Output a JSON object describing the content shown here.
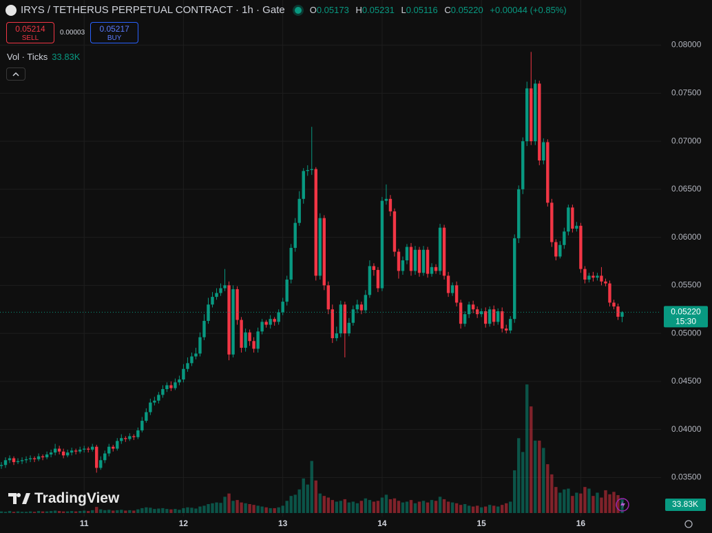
{
  "chart_data": {
    "type": "candlestick",
    "title": "IRYS / TETHERUS PERPETUAL CONTRACT · 1h · Gate",
    "ohlc_prefixes": [
      "O",
      "H",
      "L",
      "C"
    ],
    "last_price_label": "0.05220",
    "change": "+0.00044 (+0.85%)",
    "countdown": "15:30",
    "trade": {
      "sell_price": "0.05214",
      "sell_label": "SELL",
      "spread": "0.00003",
      "buy_price": "0.05217",
      "buy_label": "BUY"
    },
    "volume_indicator": "Vol · Ticks",
    "volume_last_label": "33.83K",
    "brand": "TradingView",
    "up_color": "#089981",
    "down_color": "#f23645",
    "ylim": [
      0.0313,
      0.0847
    ],
    "yticks": [
      {
        "value": 0.035,
        "label": "0.03500"
      },
      {
        "value": 0.04,
        "label": "0.04000"
      },
      {
        "value": 0.045,
        "label": "0.04500"
      },
      {
        "value": 0.05,
        "label": "0.05000"
      },
      {
        "value": 0.055,
        "label": "0.05500"
      },
      {
        "value": 0.06,
        "label": "0.06000"
      },
      {
        "value": 0.065,
        "label": "0.06500"
      },
      {
        "value": 0.07,
        "label": "0.07000"
      },
      {
        "value": 0.075,
        "label": "0.07500"
      },
      {
        "value": 0.08,
        "label": "0.08000"
      }
    ],
    "volume_lim": [
      0,
      330000
    ],
    "grid": true,
    "categories": [
      null,
      null,
      null,
      null,
      null,
      null,
      null,
      null,
      null,
      null,
      null,
      null,
      null,
      null,
      null,
      null,
      null,
      null,
      null,
      null,
      "11",
      null,
      null,
      null,
      null,
      null,
      null,
      null,
      null,
      null,
      null,
      null,
      null,
      null,
      null,
      null,
      null,
      null,
      null,
      null,
      null,
      null,
      null,
      null,
      "12",
      null,
      null,
      null,
      null,
      null,
      null,
      null,
      null,
      null,
      null,
      null,
      null,
      null,
      null,
      null,
      null,
      null,
      null,
      null,
      null,
      null,
      null,
      null,
      "13",
      null,
      null,
      null,
      null,
      null,
      null,
      null,
      null,
      null,
      null,
      null,
      null,
      null,
      null,
      null,
      null,
      null,
      null,
      null,
      null,
      null,
      null,
      null,
      "14",
      null,
      null,
      null,
      null,
      null,
      null,
      null,
      null,
      null,
      null,
      null,
      null,
      null,
      null,
      null,
      null,
      null,
      null,
      null,
      null,
      null,
      null,
      null,
      "15",
      null,
      null,
      null,
      null,
      null,
      null,
      null,
      null,
      null,
      null,
      null,
      null,
      null,
      null,
      null,
      null,
      null,
      null,
      null,
      null,
      null,
      null,
      null,
      "16",
      null,
      null,
      null,
      null,
      null,
      null,
      null,
      null,
      null,
      null
    ],
    "open": [
      0.0362,
      0.0363,
      0.0368,
      0.037,
      0.0366,
      0.0367,
      0.0368,
      0.0369,
      0.037,
      0.0369,
      0.0372,
      0.0371,
      0.0374,
      0.0376,
      0.038,
      0.0377,
      0.0373,
      0.0376,
      0.0378,
      0.0377,
      0.0379,
      0.038,
      0.0379,
      0.0382,
      0.036,
      0.0368,
      0.0375,
      0.0382,
      0.038,
      0.0388,
      0.0391,
      0.039,
      0.0393,
      0.0392,
      0.0399,
      0.0409,
      0.0418,
      0.0428,
      0.043,
      0.0436,
      0.0442,
      0.0446,
      0.0443,
      0.0449,
      0.0452,
      0.0463,
      0.0469,
      0.0476,
      0.0479,
      0.0496,
      0.0513,
      0.053,
      0.0538,
      0.0542,
      0.0547,
      0.055,
      0.0478,
      0.0546,
      0.0514,
      0.0485,
      0.0501,
      0.0492,
      0.0484,
      0.0502,
      0.0512,
      0.0509,
      0.0515,
      0.0512,
      0.0522,
      0.0533,
      0.0556,
      0.0589,
      0.0615,
      0.064,
      0.0669,
      0.067,
      0.0671,
      0.056,
      0.062,
      0.055,
      0.0525,
      0.0495,
      0.05,
      0.053,
      0.05,
      0.0511,
      0.0525,
      0.053,
      0.0524,
      0.054,
      0.057,
      0.0566,
      0.0547,
      0.0638,
      0.064,
      0.0627,
      0.0585,
      0.0565,
      0.0576,
      0.059,
      0.0565,
      0.0587,
      0.0563,
      0.0587,
      0.0562,
      0.0569,
      0.0565,
      0.061,
      0.056,
      0.0542,
      0.055,
      0.0532,
      0.051,
      0.052,
      0.053,
      0.0525,
      0.052,
      0.0523,
      0.051,
      0.0525,
      0.0512,
      0.0523,
      0.0505,
      0.0503,
      0.0515,
      0.0599,
      0.065,
      0.07,
      0.0755,
      0.07,
      0.076,
      0.068,
      0.0699,
      0.0636,
      0.0595,
      0.058,
      0.0592,
      0.0606,
      0.0631,
      0.0609,
      0.0612,
      0.0567,
      0.0556,
      0.056,
      0.0558,
      0.056,
      0.0554,
      0.0552,
      0.0532,
      0.0528,
      0.05173
    ],
    "high": [
      0.0366,
      0.0371,
      0.0373,
      0.0372,
      0.037,
      0.0371,
      0.0372,
      0.0373,
      0.0372,
      0.0375,
      0.0374,
      0.0377,
      0.0379,
      0.0385,
      0.0383,
      0.038,
      0.0379,
      0.0381,
      0.038,
      0.0382,
      0.0383,
      0.0382,
      0.0385,
      0.0384,
      0.0372,
      0.0378,
      0.0385,
      0.0384,
      0.0391,
      0.0395,
      0.0393,
      0.0396,
      0.0395,
      0.0402,
      0.0413,
      0.0422,
      0.0432,
      0.0434,
      0.0439,
      0.0446,
      0.0449,
      0.045,
      0.0453,
      0.0456,
      0.0468,
      0.0475,
      0.048,
      0.0485,
      0.0501,
      0.052,
      0.0537,
      0.0543,
      0.0547,
      0.0552,
      0.0567,
      0.0554,
      0.055,
      0.0549,
      0.0517,
      0.0505,
      0.0504,
      0.0496,
      0.0506,
      0.0515,
      0.0514,
      0.0519,
      0.0517,
      0.0525,
      0.0537,
      0.056,
      0.0593,
      0.062,
      0.0648,
      0.0672,
      0.0675,
      0.0715,
      0.0673,
      0.0625,
      0.0623,
      0.0554,
      0.053,
      0.0507,
      0.0534,
      0.0533,
      0.0516,
      0.0529,
      0.0535,
      0.0533,
      0.0545,
      0.0576,
      0.0573,
      0.0569,
      0.0642,
      0.0655,
      0.0644,
      0.063,
      0.0588,
      0.058,
      0.0593,
      0.0594,
      0.0591,
      0.059,
      0.0591,
      0.059,
      0.0573,
      0.0572,
      0.0614,
      0.0613,
      0.0564,
      0.0553,
      0.0554,
      0.0535,
      0.0523,
      0.0533,
      0.0534,
      0.0528,
      0.0526,
      0.0527,
      0.0528,
      0.0529,
      0.0526,
      0.0527,
      0.0509,
      0.0518,
      0.0603,
      0.0654,
      0.0704,
      0.0762,
      0.0793,
      0.0764,
      0.0763,
      0.0703,
      0.0702,
      0.064,
      0.0598,
      0.0596,
      0.061,
      0.0634,
      0.0634,
      0.0616,
      0.0615,
      0.057,
      0.0563,
      0.0564,
      0.0563,
      0.0569,
      0.0557,
      0.0555,
      0.0535,
      0.0531,
      0.05231
    ],
    "low": [
      0.0359,
      0.036,
      0.0365,
      0.0363,
      0.0364,
      0.0364,
      0.0365,
      0.0366,
      0.0366,
      0.0367,
      0.0368,
      0.0369,
      0.0371,
      0.0373,
      0.0374,
      0.037,
      0.0371,
      0.0373,
      0.0374,
      0.0375,
      0.0376,
      0.0376,
      0.0377,
      0.0355,
      0.0358,
      0.0365,
      0.0372,
      0.0377,
      0.0378,
      0.0385,
      0.0387,
      0.0388,
      0.0389,
      0.039,
      0.0397,
      0.0407,
      0.0415,
      0.0425,
      0.0427,
      0.0433,
      0.0439,
      0.044,
      0.0441,
      0.0446,
      0.0449,
      0.046,
      0.0466,
      0.0473,
      0.0476,
      0.0493,
      0.051,
      0.0527,
      0.0535,
      0.0539,
      0.0544,
      0.0472,
      0.0475,
      0.0509,
      0.048,
      0.0481,
      0.0487,
      0.048,
      0.048,
      0.0499,
      0.0506,
      0.0505,
      0.0508,
      0.0509,
      0.0519,
      0.0529,
      0.0552,
      0.0585,
      0.0612,
      0.0635,
      0.0664,
      0.0665,
      0.0555,
      0.0556,
      0.0545,
      0.052,
      0.049,
      0.0492,
      0.0496,
      0.0475,
      0.0497,
      0.0508,
      0.0521,
      0.052,
      0.0521,
      0.0537,
      0.056,
      0.0543,
      0.0544,
      0.0634,
      0.0622,
      0.058,
      0.0557,
      0.0561,
      0.0572,
      0.056,
      0.0561,
      0.0559,
      0.056,
      0.0558,
      0.0559,
      0.0562,
      0.0561,
      0.0556,
      0.0538,
      0.0539,
      0.0528,
      0.0505,
      0.0507,
      0.0516,
      0.0521,
      0.0516,
      0.0517,
      0.0506,
      0.0507,
      0.0508,
      0.0509,
      0.0501,
      0.05,
      0.05,
      0.0511,
      0.0594,
      0.0645,
      0.0695,
      0.0696,
      0.0696,
      0.0675,
      0.0676,
      0.0632,
      0.059,
      0.0576,
      0.0578,
      0.0588,
      0.0602,
      0.0605,
      0.0606,
      0.0563,
      0.0552,
      0.0553,
      0.0554,
      0.0555,
      0.055,
      0.0549,
      0.0528,
      0.0525,
      0.0514,
      0.05116
    ],
    "close": [
      0.0363,
      0.0368,
      0.037,
      0.0366,
      0.0367,
      0.0368,
      0.0369,
      0.037,
      0.0369,
      0.0372,
      0.0371,
      0.0374,
      0.0376,
      0.038,
      0.0377,
      0.0373,
      0.0376,
      0.0378,
      0.0377,
      0.0379,
      0.038,
      0.0379,
      0.0382,
      0.036,
      0.0368,
      0.0375,
      0.0382,
      0.038,
      0.0388,
      0.0391,
      0.039,
      0.0393,
      0.0392,
      0.0399,
      0.0409,
      0.0418,
      0.0428,
      0.043,
      0.0436,
      0.0442,
      0.0446,
      0.0443,
      0.0449,
      0.0452,
      0.0463,
      0.0469,
      0.0476,
      0.0479,
      0.0496,
      0.0513,
      0.053,
      0.0538,
      0.0542,
      0.0547,
      0.055,
      0.0478,
      0.0546,
      0.0514,
      0.0485,
      0.0501,
      0.0492,
      0.0484,
      0.0502,
      0.0512,
      0.0509,
      0.0515,
      0.0512,
      0.0522,
      0.0533,
      0.0556,
      0.0589,
      0.0615,
      0.064,
      0.0669,
      0.067,
      0.0671,
      0.056,
      0.062,
      0.055,
      0.0525,
      0.0495,
      0.05,
      0.053,
      0.05,
      0.0511,
      0.0525,
      0.053,
      0.0524,
      0.054,
      0.057,
      0.0566,
      0.0547,
      0.0638,
      0.064,
      0.0627,
      0.0585,
      0.0565,
      0.0576,
      0.059,
      0.0565,
      0.0587,
      0.0563,
      0.0587,
      0.0562,
      0.0569,
      0.0565,
      0.061,
      0.056,
      0.0542,
      0.055,
      0.0532,
      0.051,
      0.052,
      0.053,
      0.0525,
      0.052,
      0.0523,
      0.051,
      0.0525,
      0.0512,
      0.0523,
      0.0505,
      0.0503,
      0.0515,
      0.0599,
      0.065,
      0.07,
      0.0755,
      0.07,
      0.076,
      0.068,
      0.0699,
      0.0636,
      0.0595,
      0.058,
      0.0592,
      0.0606,
      0.0631,
      0.0609,
      0.0612,
      0.0567,
      0.0556,
      0.056,
      0.0558,
      0.056,
      0.0554,
      0.0552,
      0.0532,
      0.0528,
      0.05173,
      0.0522
    ],
    "volume": [
      4000,
      3000,
      5000,
      3000,
      4000,
      3000,
      3000,
      4000,
      3000,
      5000,
      4000,
      4000,
      5000,
      6000,
      5000,
      4000,
      4000,
      5000,
      4000,
      5000,
      6000,
      5000,
      7000,
      15000,
      9000,
      7000,
      8000,
      6000,
      7000,
      8000,
      6000,
      7000,
      6000,
      9000,
      12000,
      14000,
      13000,
      10000,
      11000,
      12000,
      10000,
      9000,
      10000,
      8000,
      12000,
      14000,
      13000,
      11000,
      16000,
      18000,
      22000,
      24000,
      26000,
      25000,
      40000,
      48000,
      30000,
      32000,
      26000,
      24000,
      22000,
      20000,
      18000,
      16000,
      14000,
      12000,
      12000,
      14000,
      18000,
      30000,
      42000,
      45000,
      58000,
      85000,
      70000,
      128000,
      80000,
      48000,
      42000,
      38000,
      32000,
      28000,
      30000,
      34000,
      26000,
      28000,
      24000,
      30000,
      36000,
      32000,
      28000,
      30000,
      38000,
      45000,
      34000,
      36000,
      30000,
      26000,
      28000,
      32000,
      24000,
      28000,
      30000,
      26000,
      32000,
      30000,
      40000,
      34000,
      28000,
      26000,
      24000,
      20000,
      22000,
      18000,
      16000,
      18000,
      14000,
      16000,
      20000,
      18000,
      16000,
      20000,
      24000,
      28000,
      105000,
      184000,
      150000,
      316000,
      262000,
      178000,
      178000,
      160000,
      120000,
      95000,
      64000,
      50000,
      58000,
      60000,
      42000,
      50000,
      48000,
      64000,
      60000,
      42000,
      50000,
      38000,
      56000,
      46000,
      52000,
      44000,
      33830
    ]
  }
}
